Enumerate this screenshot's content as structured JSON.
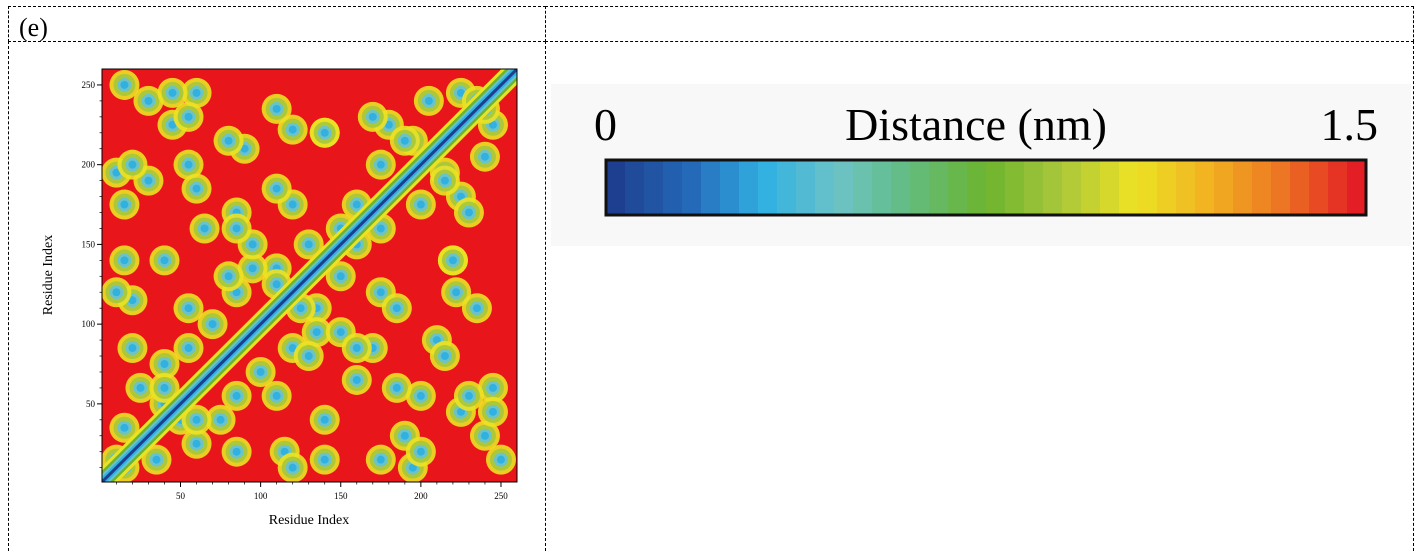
{
  "panel_label": "(e)",
  "colors": {
    "background": "#e8151b",
    "colorbar_stops": [
      "#1e3f8f",
      "#2568b8",
      "#30b1e2",
      "#6cc3c7",
      "#62bc7c",
      "#6cb42e",
      "#a9c73a",
      "#ece224",
      "#f2b321",
      "#ec7423",
      "#e31e24"
    ]
  },
  "chart_data": [
    {
      "type": "heatmap",
      "title": "",
      "xlabel": "Residue Index",
      "ylabel": "Residue Index",
      "xlim": [
        1,
        260
      ],
      "ylim": [
        1,
        260
      ],
      "xticks": [
        50,
        100,
        150,
        200,
        250
      ],
      "yticks": [
        50,
        100,
        150,
        200,
        250
      ],
      "value_units": "nm",
      "value_range": [
        0,
        1.5
      ],
      "description_of_structure": "symmetric residue contact distance map, diagonal ~0 nm, background ~1.5 nm",
      "contact_clusters": [
        {
          "x": 30,
          "y": 240
        },
        {
          "x": 45,
          "y": 225
        },
        {
          "x": 60,
          "y": 245
        },
        {
          "x": 10,
          "y": 195
        },
        {
          "x": 15,
          "y": 175
        },
        {
          "x": 55,
          "y": 200
        },
        {
          "x": 90,
          "y": 210
        },
        {
          "x": 120,
          "y": 222
        },
        {
          "x": 140,
          "y": 220
        },
        {
          "x": 180,
          "y": 225
        },
        {
          "x": 195,
          "y": 215
        },
        {
          "x": 205,
          "y": 240
        },
        {
          "x": 225,
          "y": 245
        },
        {
          "x": 240,
          "y": 235
        },
        {
          "x": 215,
          "y": 190
        },
        {
          "x": 200,
          "y": 175
        },
        {
          "x": 175,
          "y": 160
        },
        {
          "x": 160,
          "y": 150
        },
        {
          "x": 150,
          "y": 130
        },
        {
          "x": 175,
          "y": 120
        },
        {
          "x": 135,
          "y": 110
        },
        {
          "x": 110,
          "y": 125
        },
        {
          "x": 95,
          "y": 135
        },
        {
          "x": 85,
          "y": 120
        },
        {
          "x": 70,
          "y": 100
        },
        {
          "x": 55,
          "y": 85
        },
        {
          "x": 40,
          "y": 75
        },
        {
          "x": 25,
          "y": 60
        },
        {
          "x": 15,
          "y": 35
        },
        {
          "x": 10,
          "y": 15
        },
        {
          "x": 20,
          "y": 115
        },
        {
          "x": 15,
          "y": 140
        },
        {
          "x": 40,
          "y": 50
        },
        {
          "x": 60,
          "y": 40
        },
        {
          "x": 85,
          "y": 20
        },
        {
          "x": 110,
          "y": 55
        },
        {
          "x": 130,
          "y": 80
        },
        {
          "x": 150,
          "y": 95
        },
        {
          "x": 170,
          "y": 85
        },
        {
          "x": 185,
          "y": 60
        },
        {
          "x": 190,
          "y": 30
        },
        {
          "x": 200,
          "y": 20
        },
        {
          "x": 215,
          "y": 80
        },
        {
          "x": 230,
          "y": 55
        },
        {
          "x": 245,
          "y": 45
        },
        {
          "x": 250,
          "y": 15
        },
        {
          "x": 235,
          "y": 110
        },
        {
          "x": 220,
          "y": 140
        },
        {
          "x": 140,
          "y": 40
        },
        {
          "x": 120,
          "y": 10
        },
        {
          "x": 65,
          "y": 160
        },
        {
          "x": 85,
          "y": 160
        },
        {
          "x": 185,
          "y": 110
        },
        {
          "x": 230,
          "y": 170
        }
      ]
    },
    {
      "type": "colorbar",
      "label": "Distance (nm)",
      "min_label": "0",
      "max_label": "1.5",
      "range": [
        0,
        1.5
      ]
    }
  ]
}
